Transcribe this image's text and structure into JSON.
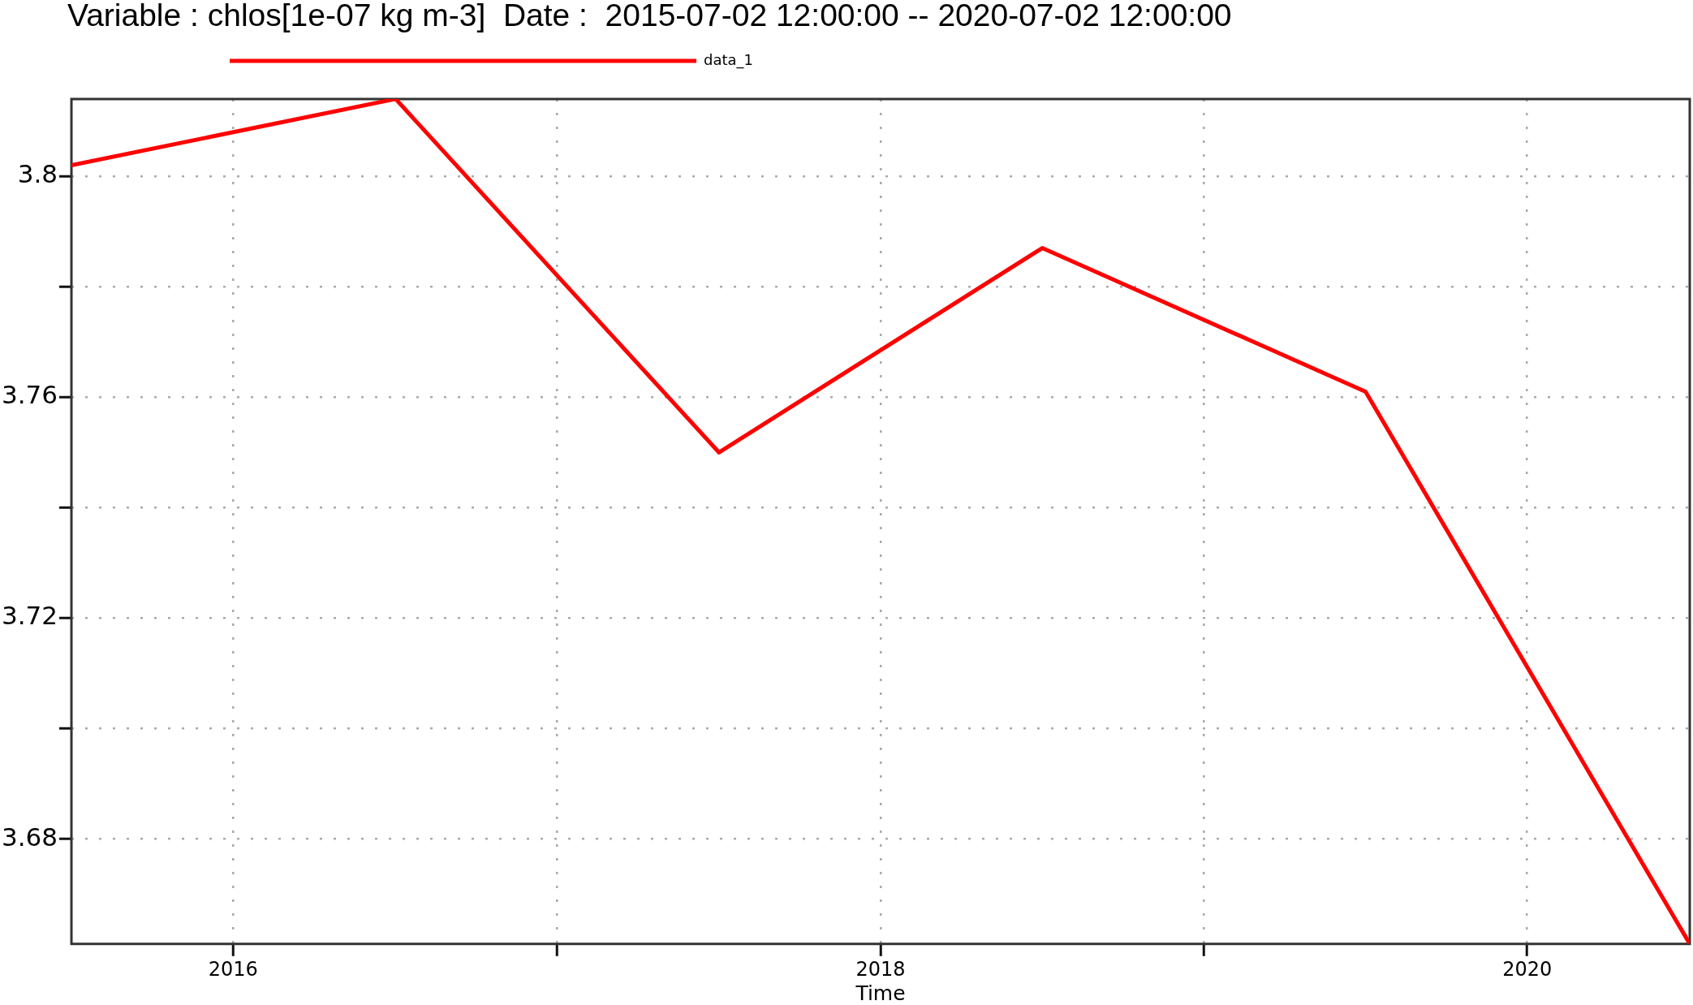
{
  "chart_data": {
    "type": "line",
    "title": "Variable : chlos[1e-07 kg m-3]  Date :  2015-07-02 12:00:00 -- 2020-07-02 12:00:00",
    "xlabel": "Time",
    "x": [
      "2015-07-02T12:00",
      "2016-07-02T12:00",
      "2017-07-02T12:00",
      "2018-07-02T12:00",
      "2019-07-02T12:00",
      "2020-07-02T12:00"
    ],
    "series": [
      {
        "name": "data_1",
        "color": "#ff0000",
        "values": [
          3.802,
          3.814,
          3.75,
          3.787,
          3.761,
          3.661
        ]
      }
    ],
    "xlim": [
      "2015-07-02T12:00",
      "2020-07-02T12:00"
    ],
    "xticks": [
      "2016",
      {
        "value": "2017",
        "label": null
      },
      "2018",
      {
        "value": "2019",
        "label": null
      },
      "2020"
    ],
    "ylim": [
      3.661,
      3.814
    ],
    "yticks": [
      3.68,
      {
        "value": 3.7,
        "label": null
      },
      3.72,
      {
        "value": 3.74,
        "label": null
      },
      3.76,
      {
        "value": 3.78,
        "label": null
      },
      3.8
    ],
    "grid": true,
    "legend": "top left",
    "marker": "none",
    "line_style": "solid"
  }
}
